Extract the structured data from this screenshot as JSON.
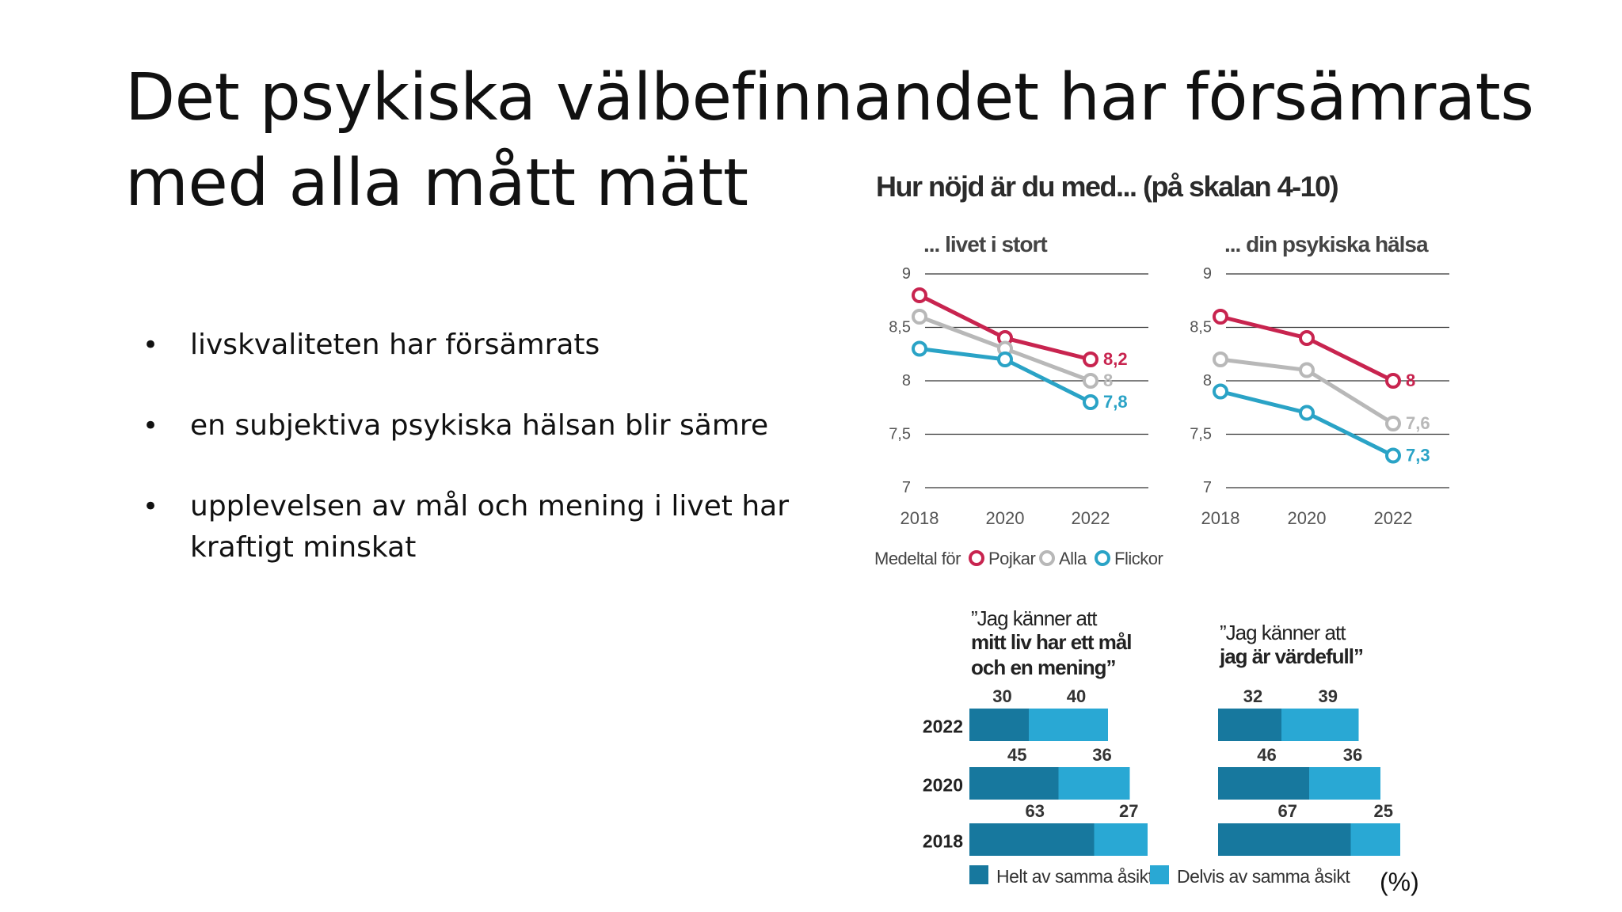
{
  "slide": {
    "title_line1": "Det psykiska välbefinnandet har försämrats",
    "title_line2": "med alla mått mätt",
    "bullets": [
      "livskvaliteten har försämrats",
      "en subjektiva psykiska hälsan blir sämre",
      "upplevelsen av mål och mening i livet har kraftigt minskat"
    ],
    "bullet_symbol": "•",
    "unit_label": "(%)"
  },
  "figure": {
    "heading": "Hur nöjd är du med... (på skalan 4-10)",
    "legend_prefix": "Medeltal för",
    "bar_legend": {
      "dark": "Helt av samma åsikt",
      "light": "Delvis av samma åsikt"
    }
  },
  "colors": {
    "pojkar": "#c8244f",
    "alla": "#b8b8b8",
    "flickor": "#2aa3c6",
    "bar_dark": "#17789e",
    "bar_light": "#29a8d4",
    "text_dark": "#2b2b2b",
    "axis_text": "#555555"
  },
  "chart_data": [
    {
      "type": "line",
      "title": "... livet i stort",
      "x": [
        "2018",
        "2020",
        "2022"
      ],
      "yticks": [
        "9",
        "8,5",
        "8",
        "7,5",
        "7"
      ],
      "ylim": [
        7,
        9
      ],
      "grid": true,
      "series": [
        {
          "name": "Pojkar",
          "color_key": "pojkar",
          "values": [
            8.8,
            8.4,
            8.2
          ],
          "end_label": "8,2"
        },
        {
          "name": "Alla",
          "color_key": "alla",
          "values": [
            8.6,
            8.3,
            8.0
          ],
          "end_label": "8"
        },
        {
          "name": "Flickor",
          "color_key": "flickor",
          "values": [
            8.3,
            8.2,
            7.8
          ],
          "end_label": "7,8"
        }
      ]
    },
    {
      "type": "line",
      "title": "... din psykiska hälsa",
      "x": [
        "2018",
        "2020",
        "2022"
      ],
      "yticks": [
        "9",
        "8,5",
        "8",
        "7,5",
        "7"
      ],
      "ylim": [
        7,
        9
      ],
      "grid": true,
      "series": [
        {
          "name": "Pojkar",
          "color_key": "pojkar",
          "values": [
            8.6,
            8.4,
            8.0
          ],
          "end_label": "8"
        },
        {
          "name": "Alla",
          "color_key": "alla",
          "values": [
            8.2,
            8.1,
            7.6
          ],
          "end_label": "7,6"
        },
        {
          "name": "Flickor",
          "color_key": "flickor",
          "values": [
            7.9,
            7.7,
            7.3
          ],
          "end_label": "7,3"
        }
      ]
    },
    {
      "type": "bar",
      "title_lines": [
        "”Jag känner att",
        "mitt liv har ett mål",
        "och en mening”"
      ],
      "categories": [
        "2022",
        "2020",
        "2018"
      ],
      "series": [
        {
          "name": "Helt av samma åsikt",
          "values": [
            30,
            45,
            63
          ]
        },
        {
          "name": "Delvis av samma åsikt",
          "values": [
            40,
            36,
            27
          ]
        }
      ]
    },
    {
      "type": "bar",
      "title_lines": [
        "”Jag känner att",
        "jag är värdefull”"
      ],
      "categories": [
        "2022",
        "2020",
        "2018"
      ],
      "series": [
        {
          "name": "Helt av samma åsikt",
          "values": [
            32,
            46,
            67
          ]
        },
        {
          "name": "Delvis av samma åsikt",
          "values": [
            39,
            36,
            25
          ]
        }
      ]
    }
  ]
}
